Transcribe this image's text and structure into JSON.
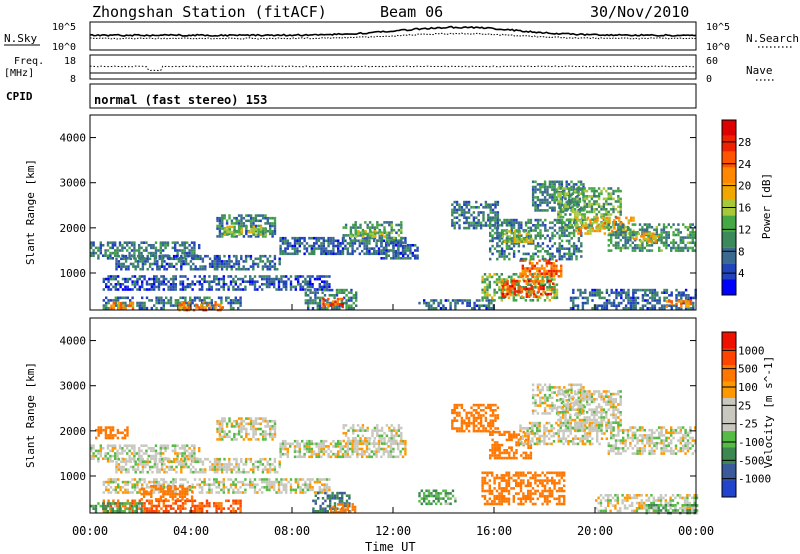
{
  "header": {
    "station": "Zhongshan Station (fitACF)",
    "beam": "Beam 06",
    "date": "30/Nov/2010"
  },
  "noise_panel": {
    "left_label": "N.Sky",
    "left_ticks": [
      "10^5",
      "10^0"
    ],
    "right_label": "N.Search",
    "right_ticks": [
      "10^5",
      "10^0"
    ]
  },
  "freq_panel": {
    "left_label_1": "Freq.",
    "left_label_2": "[MHz]",
    "left_ticks": [
      "18",
      "8"
    ],
    "right_label": "Nave",
    "right_ticks": [
      "60",
      "0"
    ]
  },
  "cpid": {
    "label": "CPID",
    "text": "normal (fast stereo) 153"
  },
  "x_axis": {
    "label": "Time UT",
    "ticks": [
      "00:00",
      "04:00",
      "08:00",
      "12:00",
      "16:00",
      "20:00",
      "00:00"
    ]
  },
  "power_panel": {
    "ylabel": "Slant Range [km]",
    "yticks": [
      "4000",
      "3000",
      "2000",
      "1000"
    ],
    "colorbar_label": "Power [dB]",
    "colorbar_ticks": [
      "28",
      "24",
      "20",
      "16",
      "12",
      "8",
      "4"
    ],
    "colorbar_colors": [
      "#0000ff",
      "#2244bb",
      "#3a6a90",
      "#3c8a5a",
      "#44a844",
      "#a8c83c",
      "#f0a800",
      "#ff8800",
      "#ff5500",
      "#ee2200",
      "#dd0000"
    ]
  },
  "velocity_panel": {
    "ylabel": "Slant Range [km]",
    "yticks": [
      "4000",
      "3000",
      "2000",
      "1000"
    ],
    "colorbar_label": "Velocity [m s^-1]",
    "colorbar_ticks": [
      "1000",
      "500",
      "100",
      "25",
      "-25",
      "-100",
      "-500",
      "-1000"
    ],
    "colorbar_colors": [
      "#2244cc",
      "#3a5a9a",
      "#3c8850",
      "#55bb44",
      "#c8c8c0",
      "#c8c8c0",
      "#ff9900",
      "#ff7700",
      "#ff4400",
      "#ee1100"
    ]
  },
  "chart_data": [
    {
      "type": "heatmap",
      "title": "Power",
      "xlabel": "Time UT",
      "ylabel": "Slant Range [km]",
      "xlim": [
        0,
        24
      ],
      "ylim": [
        180,
        4500
      ],
      "colorbar_range": [
        2,
        30
      ],
      "regions": [
        {
          "t0": 0.0,
          "t1": 4.3,
          "r0": 1350,
          "r1": 1700,
          "v": 9
        },
        {
          "t0": 1.0,
          "t1": 7.5,
          "r0": 1100,
          "r1": 1400,
          "v": 8
        },
        {
          "t0": 0.5,
          "t1": 9.5,
          "r0": 650,
          "r1": 950,
          "v": 7
        },
        {
          "t0": 5.0,
          "t1": 7.3,
          "r0": 1800,
          "r1": 2300,
          "v": 10
        },
        {
          "t0": 5.3,
          "t1": 7.0,
          "r0": 1850,
          "r1": 2050,
          "v": 15
        },
        {
          "t0": 7.5,
          "t1": 12.5,
          "r0": 1400,
          "r1": 1800,
          "v": 8
        },
        {
          "t0": 10.0,
          "t1": 12.3,
          "r0": 1700,
          "r1": 2150,
          "v": 11
        },
        {
          "t0": 10.3,
          "t1": 11.7,
          "r0": 1800,
          "r1": 1950,
          "v": 16
        },
        {
          "t0": 11.5,
          "t1": 13.0,
          "r0": 1300,
          "r1": 1700,
          "v": 8
        },
        {
          "t0": 0.5,
          "t1": 6.0,
          "r0": 220,
          "r1": 480,
          "v": 9
        },
        {
          "t0": 0.8,
          "t1": 1.7,
          "r0": 200,
          "r1": 360,
          "v": 21
        },
        {
          "t0": 3.5,
          "t1": 5.3,
          "r0": 200,
          "r1": 380,
          "v": 22
        },
        {
          "t0": 8.5,
          "t1": 10.5,
          "r0": 220,
          "r1": 650,
          "v": 10
        },
        {
          "t0": 9.2,
          "t1": 10.0,
          "r0": 260,
          "r1": 450,
          "v": 24
        },
        {
          "t0": 13.0,
          "t1": 16.0,
          "r0": 200,
          "r1": 420,
          "v": 8
        },
        {
          "t0": 14.3,
          "t1": 16.2,
          "r0": 2000,
          "r1": 2600,
          "v": 9
        },
        {
          "t0": 15.5,
          "t1": 18.5,
          "r0": 400,
          "r1": 1000,
          "v": 14
        },
        {
          "t0": 16.3,
          "t1": 18.3,
          "r0": 500,
          "r1": 850,
          "v": 24
        },
        {
          "t0": 17.0,
          "t1": 18.7,
          "r0": 950,
          "r1": 1300,
          "v": 23
        },
        {
          "t0": 15.8,
          "t1": 19.5,
          "r0": 1300,
          "r1": 2200,
          "v": 10
        },
        {
          "t0": 16.3,
          "t1": 17.5,
          "r0": 1700,
          "r1": 1950,
          "v": 16
        },
        {
          "t0": 17.5,
          "t1": 19.5,
          "r0": 2400,
          "r1": 3050,
          "v": 10
        },
        {
          "t0": 18.5,
          "t1": 21.0,
          "r0": 2000,
          "r1": 2900,
          "v": 13
        },
        {
          "t0": 19.2,
          "t1": 21.5,
          "r0": 1900,
          "r1": 2250,
          "v": 19
        },
        {
          "t0": 20.5,
          "t1": 24.0,
          "r0": 1500,
          "r1": 2100,
          "v": 11
        },
        {
          "t0": 21.5,
          "t1": 22.5,
          "r0": 1700,
          "r1": 1900,
          "v": 18
        },
        {
          "t0": 19.0,
          "t1": 24.0,
          "r0": 200,
          "r1": 650,
          "v": 8
        },
        {
          "t0": 22.8,
          "t1": 23.8,
          "r0": 250,
          "r1": 400,
          "v": 22
        }
      ]
    },
    {
      "type": "heatmap",
      "title": "Velocity",
      "xlabel": "Time UT",
      "ylabel": "Slant Range [km]",
      "xlim": [
        0,
        24
      ],
      "ylim": [
        180,
        4500
      ],
      "colorbar_range": [
        -1000,
        1000
      ],
      "regions": [
        {
          "t0": 0.0,
          "t1": 4.3,
          "r0": 1350,
          "r1": 1700,
          "v": 0
        },
        {
          "t0": 1.0,
          "t1": 7.5,
          "r0": 1100,
          "r1": 1400,
          "v": 0
        },
        {
          "t0": 0.5,
          "t1": 9.5,
          "r0": 650,
          "r1": 950,
          "v": 0
        },
        {
          "t0": 5.0,
          "t1": 7.3,
          "r0": 1800,
          "r1": 2300,
          "v": 0
        },
        {
          "t0": 7.5,
          "t1": 12.5,
          "r0": 1400,
          "r1": 1800,
          "v": 0
        },
        {
          "t0": 10.0,
          "t1": 12.3,
          "r0": 1700,
          "r1": 2150,
          "v": 0
        },
        {
          "t0": 0.2,
          "t1": 1.5,
          "r0": 1850,
          "r1": 2100,
          "v": -200
        },
        {
          "t0": 0.5,
          "t1": 6.0,
          "r0": 220,
          "r1": 480,
          "v": -300
        },
        {
          "t0": 0.0,
          "t1": 2.0,
          "r0": 200,
          "r1": 420,
          "v": 60
        },
        {
          "t0": 2.0,
          "t1": 4.0,
          "r0": 500,
          "r1": 800,
          "v": -200
        },
        {
          "t0": 8.8,
          "t1": 10.3,
          "r0": 220,
          "r1": 650,
          "v": 300
        },
        {
          "t0": 9.5,
          "t1": 10.5,
          "r0": 200,
          "r1": 400,
          "v": -200
        },
        {
          "t0": 13.0,
          "t1": 14.5,
          "r0": 400,
          "r1": 700,
          "v": 60
        },
        {
          "t0": 14.3,
          "t1": 16.2,
          "r0": 2000,
          "r1": 2600,
          "v": -200
        },
        {
          "t0": 15.5,
          "t1": 18.8,
          "r0": 400,
          "r1": 1100,
          "v": -200
        },
        {
          "t0": 15.8,
          "t1": 17.5,
          "r0": 1400,
          "r1": 2000,
          "v": -200
        },
        {
          "t0": 17.0,
          "t1": 20.5,
          "r0": 1700,
          "r1": 2200,
          "v": 0
        },
        {
          "t0": 17.5,
          "t1": 19.5,
          "r0": 2400,
          "r1": 3050,
          "v": 0
        },
        {
          "t0": 18.5,
          "t1": 21.0,
          "r0": 2000,
          "r1": 2900,
          "v": 0
        },
        {
          "t0": 20.5,
          "t1": 24.0,
          "r0": 1500,
          "r1": 2100,
          "v": 0
        },
        {
          "t0": 20.0,
          "t1": 24.0,
          "r0": 200,
          "r1": 600,
          "v": 0
        },
        {
          "t0": 22.0,
          "t1": 24.0,
          "r0": 200,
          "r1": 380,
          "v": 60
        }
      ]
    }
  ]
}
